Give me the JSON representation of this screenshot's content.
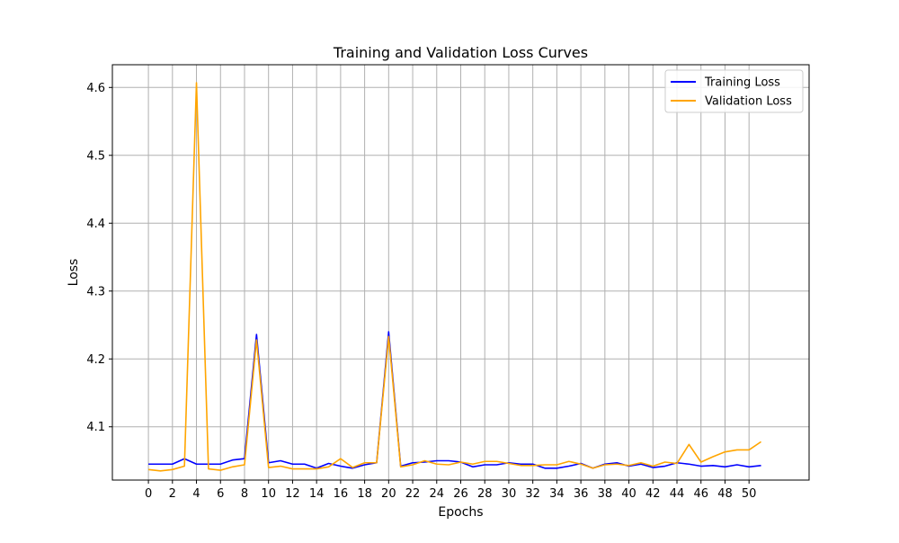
{
  "chart_data": {
    "type": "line",
    "title": "Training and Validation Loss Curves",
    "xlabel": "Epochs",
    "ylabel": "Loss",
    "xlim": [
      -3,
      55
    ],
    "ylim": [
      4.0215,
      4.6335
    ],
    "xticks": [
      0,
      2,
      4,
      6,
      8,
      10,
      12,
      14,
      16,
      18,
      20,
      22,
      24,
      26,
      28,
      30,
      32,
      34,
      36,
      38,
      40,
      42,
      44,
      46,
      48,
      50
    ],
    "yticks": [
      4.1,
      4.2,
      4.3,
      4.4,
      4.5,
      4.6
    ],
    "ytick_labels": [
      "4.1",
      "4.2",
      "4.3",
      "4.4",
      "4.5",
      "4.6"
    ],
    "grid": true,
    "legend_position": "top-right",
    "x": [
      0,
      1,
      2,
      3,
      4,
      5,
      6,
      7,
      8,
      9,
      10,
      11,
      12,
      13,
      14,
      15,
      16,
      17,
      18,
      19,
      20,
      21,
      22,
      23,
      24,
      25,
      26,
      27,
      28,
      29,
      30,
      31,
      32,
      33,
      34,
      35,
      36,
      37,
      38,
      39,
      40,
      41,
      42,
      43,
      44,
      45,
      46,
      47,
      48,
      49,
      50,
      51
    ],
    "series": [
      {
        "name": "Training Loss",
        "color": "#0000ff",
        "values": [
          4.045,
          4.045,
          4.045,
          4.053,
          4.045,
          4.045,
          4.045,
          4.051,
          4.053,
          4.236,
          4.047,
          4.05,
          4.045,
          4.045,
          4.039,
          4.046,
          4.042,
          4.039,
          4.044,
          4.047,
          4.24,
          4.042,
          4.047,
          4.048,
          4.05,
          4.05,
          4.048,
          4.041,
          4.044,
          4.044,
          4.047,
          4.045,
          4.045,
          4.039,
          4.039,
          4.042,
          4.046,
          4.039,
          4.045,
          4.047,
          4.042,
          4.045,
          4.04,
          4.042,
          4.047,
          4.045,
          4.042,
          4.043,
          4.041,
          4.044,
          4.041,
          4.043
        ]
      },
      {
        "name": "Validation Loss",
        "color": "#ffa500",
        "values": [
          4.037,
          4.035,
          4.037,
          4.042,
          4.607,
          4.038,
          4.036,
          4.041,
          4.044,
          4.228,
          4.04,
          4.042,
          4.038,
          4.038,
          4.038,
          4.041,
          4.053,
          4.04,
          4.047,
          4.047,
          4.233,
          4.041,
          4.044,
          4.05,
          4.045,
          4.044,
          4.048,
          4.045,
          4.049,
          4.049,
          4.046,
          4.043,
          4.043,
          4.044,
          4.044,
          4.049,
          4.045,
          4.039,
          4.044,
          4.045,
          4.043,
          4.047,
          4.042,
          4.048,
          4.046,
          4.074,
          4.048,
          4.056,
          4.063,
          4.066,
          4.066,
          4.078
        ]
      }
    ]
  }
}
